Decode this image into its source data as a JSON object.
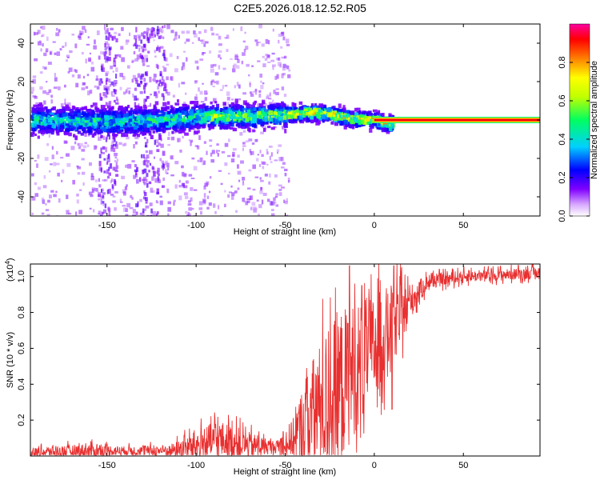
{
  "title": "C2E5.2026.018.12.52.R05",
  "chart_data": [
    {
      "type": "heatmap",
      "xlabel": "Height of straight line (km)",
      "ylabel": "Frequency (Hz)",
      "xlim": [
        -193,
        93
      ],
      "ylim": [
        -50,
        50
      ],
      "xticks": [
        -150,
        -100,
        -50,
        0,
        50
      ],
      "yticks": [
        -40,
        -20,
        0,
        20,
        40
      ],
      "colorbar": {
        "label": "Normalized spectral amplitude",
        "range": [
          0,
          1
        ],
        "ticks": [
          "0.0",
          "0.2",
          "0.4",
          "0.6",
          "0.8"
        ],
        "colormap": [
          "#ffffff",
          "#8000ff",
          "#0000ff",
          "#00d0ff",
          "#00ff60",
          "#c0ff00",
          "#ffff00",
          "#ff8000",
          "#ff0000",
          "#ff00a0"
        ]
      },
      "ridge": [
        {
          "x": -190,
          "y": 0
        },
        {
          "x": -150,
          "y": -1
        },
        {
          "x": -120,
          "y": 0
        },
        {
          "x": -95,
          "y": 2
        },
        {
          "x": -70,
          "y": 2
        },
        {
          "x": -50,
          "y": 3
        },
        {
          "x": -35,
          "y": 4
        },
        {
          "x": -25,
          "y": 3
        },
        {
          "x": -15,
          "y": 1
        },
        {
          "x": 0,
          "y": 0
        },
        {
          "x": 8,
          "y": -2
        },
        {
          "x": 25,
          "y": 0
        },
        {
          "x": 93,
          "y": 0
        }
      ],
      "tone": {
        "x_start": 0,
        "x_end": 93,
        "frequency": 0
      }
    },
    {
      "type": "line",
      "xlabel": "Height of straight line (km)",
      "ylabel": "SNR (10 * v/v)",
      "multiplier": "(x10",
      "multiplier_exp": "4",
      "multiplier_close": ")",
      "xlim": [
        -193,
        93
      ],
      "ylim": [
        0,
        1.07
      ],
      "xticks": [
        -150,
        -100,
        -50,
        0,
        50
      ],
      "yticks": [
        "0.2",
        "0.4",
        "0.6",
        "0.8",
        "1.0"
      ],
      "color": "#e83030",
      "envelope": [
        {
          "x": -193,
          "base": 0.02,
          "amp": 0.03
        },
        {
          "x": -160,
          "base": 0.03,
          "amp": 0.05
        },
        {
          "x": -140,
          "base": 0.03,
          "amp": 0.03
        },
        {
          "x": -115,
          "base": 0.03,
          "amp": 0.04
        },
        {
          "x": -100,
          "base": 0.06,
          "amp": 0.1
        },
        {
          "x": -88,
          "base": 0.09,
          "amp": 0.14
        },
        {
          "x": -70,
          "base": 0.06,
          "amp": 0.09
        },
        {
          "x": -55,
          "base": 0.05,
          "amp": 0.04
        },
        {
          "x": -45,
          "base": 0.1,
          "amp": 0.15
        },
        {
          "x": -38,
          "base": 0.2,
          "amp": 0.35
        },
        {
          "x": -30,
          "base": 0.28,
          "amp": 0.45
        },
        {
          "x": -20,
          "base": 0.38,
          "amp": 0.55
        },
        {
          "x": -10,
          "base": 0.5,
          "amp": 0.45
        },
        {
          "x": 0,
          "base": 0.62,
          "amp": 0.35
        },
        {
          "x": 10,
          "base": 0.72,
          "amp": 0.3
        },
        {
          "x": 20,
          "base": 0.86,
          "amp": 0.12
        },
        {
          "x": 30,
          "base": 0.97,
          "amp": 0.05
        },
        {
          "x": 50,
          "base": 1.0,
          "amp": 0.04
        },
        {
          "x": 93,
          "base": 1.02,
          "amp": 0.04
        }
      ],
      "spikes": [
        {
          "x": -14,
          "y": 1.06
        },
        {
          "x": 11,
          "y": 1.06
        },
        {
          "x": 10,
          "y": 0.26
        },
        {
          "x": -7,
          "y": 0.95
        }
      ]
    }
  ]
}
